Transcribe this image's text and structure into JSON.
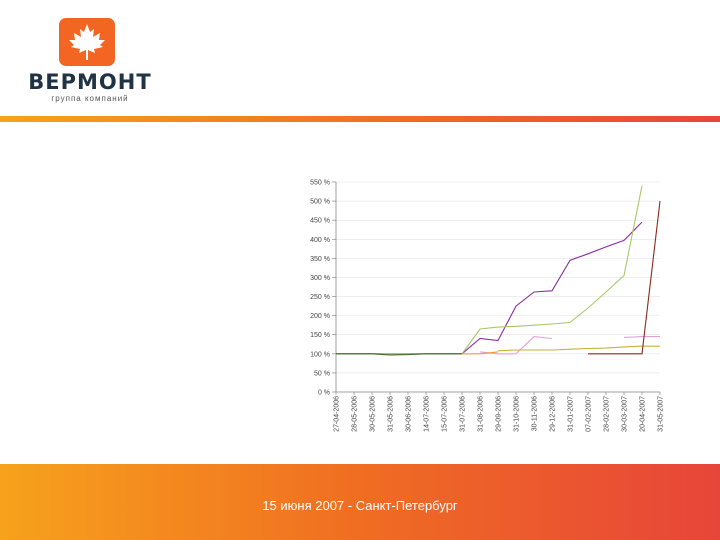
{
  "brand": {
    "name": "ВЕРМОНТ",
    "tagline": "группа компаний",
    "logo_color": "#f26522",
    "name_color": "#1f3344"
  },
  "footer": {
    "text": "15 июня 2007 - Санкт-Петербург"
  },
  "colors": {
    "accent_start": "#f7a21c",
    "accent_end": "#e7453a"
  },
  "chart_data": {
    "type": "line",
    "title": "",
    "xlabel": "",
    "ylabel": "",
    "ylim": [
      0,
      550
    ],
    "yticks": [
      "0 %",
      "50 %",
      "100 %",
      "150 %",
      "200 %",
      "250 %",
      "300 %",
      "350 %",
      "400 %",
      "450 %",
      "500 %",
      "550 %"
    ],
    "ytick_values": [
      0,
      50,
      100,
      150,
      200,
      250,
      300,
      350,
      400,
      450,
      500,
      550
    ],
    "grid": true,
    "categories": [
      "27-04-2006",
      "28-05-2006",
      "30-05-2006",
      "31-05-2006",
      "30-06-2006",
      "14-07-2006",
      "15-07-2006",
      "31-07-2006",
      "31-08-2006",
      "29-09-2006",
      "31-10-2006",
      "30-11-2006",
      "29-12-2006",
      "31-01-2007",
      "07-02-2007",
      "28-02-2007",
      "30-03-2007",
      "20-04-2007",
      "31-05-2007"
    ],
    "series": [
      {
        "name": "purple",
        "color": "#8b2fa0",
        "values": [
          100,
          100,
          100,
          100,
          100,
          100,
          100,
          100,
          140,
          135,
          225,
          262,
          265,
          345,
          362,
          380,
          397,
          445,
          null
        ]
      },
      {
        "name": "light green",
        "color": "#a4c96a",
        "values": [
          100,
          100,
          100,
          100,
          100,
          100,
          100,
          100,
          165,
          170,
          172,
          175,
          178,
          182,
          220,
          262,
          305,
          540,
          null
        ]
      },
      {
        "name": "pink",
        "color": "#e2a0d8",
        "values": [
          null,
          null,
          null,
          null,
          null,
          null,
          null,
          null,
          105,
          100,
          100,
          145,
          140,
          null,
          null,
          null,
          143,
          145,
          145
        ]
      },
      {
        "name": "olive",
        "color": "#c6b23a",
        "values": [
          null,
          null,
          null,
          null,
          null,
          null,
          null,
          null,
          null,
          108,
          110,
          110,
          110,
          112,
          114,
          115,
          118,
          120,
          120
        ]
      },
      {
        "name": "dark red",
        "color": "#8a2a1c",
        "values": [
          null,
          null,
          null,
          null,
          null,
          null,
          null,
          null,
          null,
          null,
          null,
          null,
          null,
          null,
          100,
          100,
          100,
          100,
          500
        ]
      },
      {
        "name": "orange",
        "color": "#f0934a",
        "values": [
          null,
          null,
          null,
          null,
          null,
          null,
          null,
          100,
          100,
          105,
          null,
          null,
          null,
          null,
          null,
          null,
          null,
          null,
          null
        ]
      },
      {
        "name": "dark green",
        "color": "#3f6a33",
        "values": [
          100,
          100,
          100,
          97,
          98,
          100,
          100,
          100,
          null,
          null,
          null,
          null,
          null,
          null,
          null,
          null,
          null,
          null,
          null
        ]
      }
    ]
  }
}
